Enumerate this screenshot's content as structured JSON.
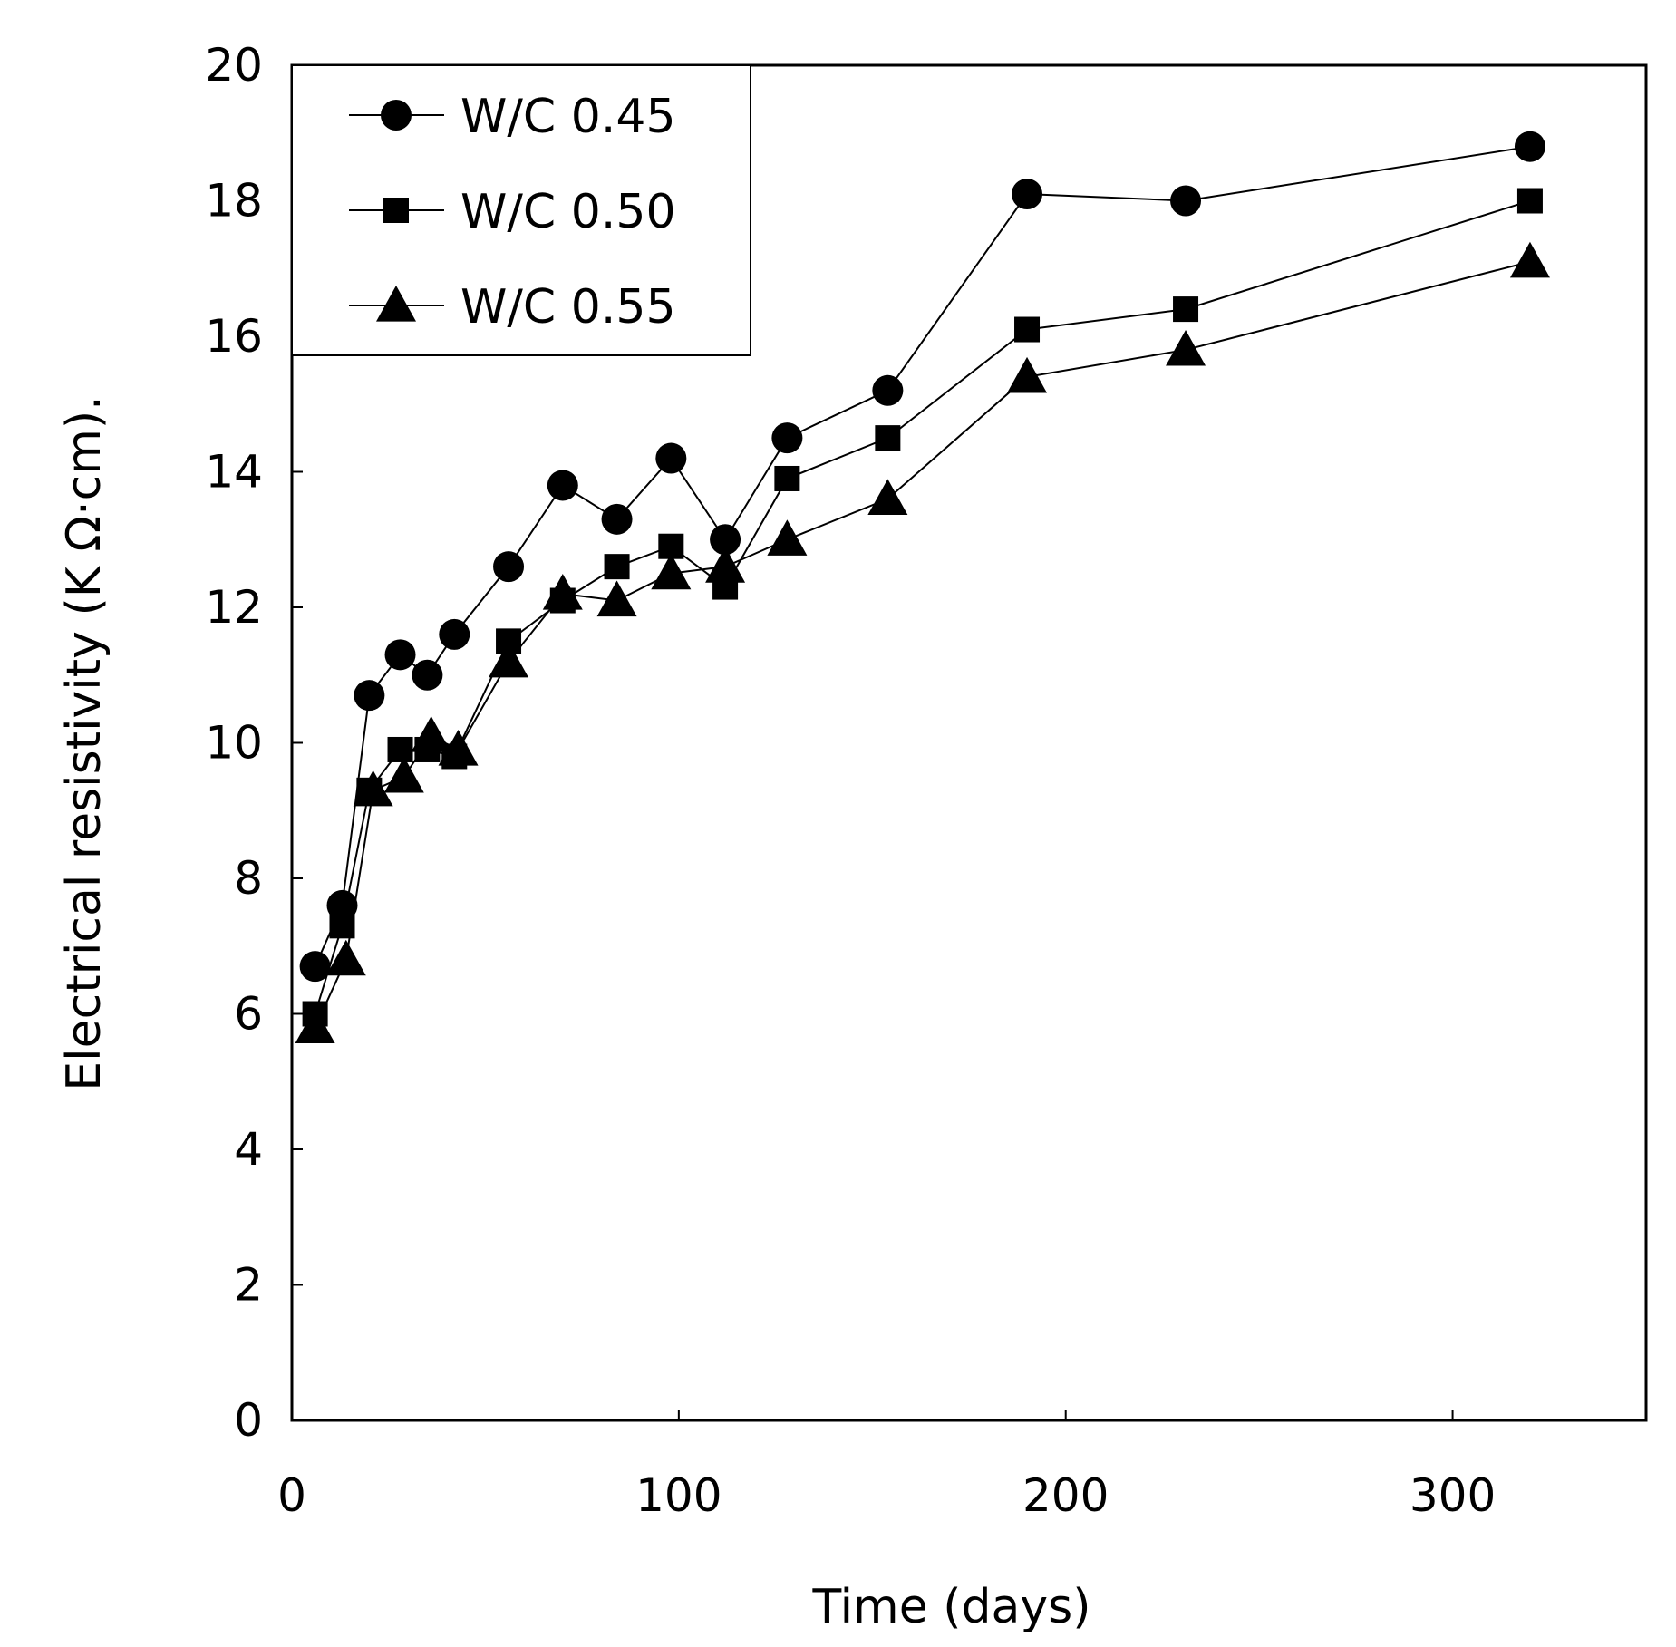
{
  "chart_data": {
    "type": "line",
    "title": "",
    "xlabel": "Time (days)",
    "ylabel": "Electrical resistivity (K Ω·cm).",
    "xlim": [
      0,
      350
    ],
    "ylim": [
      0,
      20
    ],
    "xticks": [
      0,
      100,
      200,
      300
    ],
    "xtick_labels": [
      "0",
      "100",
      "200",
      "300"
    ],
    "yticks": [
      0,
      2,
      4,
      6,
      8,
      10,
      12,
      14,
      16,
      18,
      20
    ],
    "ytick_labels": [
      "0",
      "2",
      "4",
      "6",
      "8",
      "10",
      "12",
      "14",
      "16",
      "18",
      "20"
    ],
    "grid": false,
    "legend_position": "top-left",
    "series": [
      {
        "name": "W/C 0.45",
        "marker": "circle",
        "x": [
          6,
          13,
          20,
          28,
          35,
          42,
          56,
          70,
          84,
          98,
          112,
          128,
          154,
          190,
          231,
          320
        ],
        "y": [
          6.7,
          7.6,
          10.7,
          11.3,
          11.0,
          11.6,
          12.6,
          13.8,
          13.3,
          14.2,
          13.0,
          14.5,
          15.2,
          18.1,
          18.0,
          18.8
        ]
      },
      {
        "name": "W/C 0.50",
        "marker": "square",
        "x": [
          6,
          13,
          20,
          28,
          35,
          42,
          56,
          70,
          84,
          98,
          112,
          128,
          154,
          190,
          231,
          320
        ],
        "y": [
          6.0,
          7.3,
          9.3,
          9.9,
          9.9,
          9.8,
          11.5,
          12.1,
          12.6,
          12.9,
          12.3,
          13.9,
          14.5,
          16.1,
          16.4,
          18.0
        ]
      },
      {
        "name": "W/C 0.55",
        "marker": "triangle",
        "x": [
          6,
          14,
          21,
          29,
          36,
          43,
          56,
          70,
          84,
          98,
          112,
          128,
          154,
          190,
          231,
          320
        ],
        "y": [
          5.8,
          6.8,
          9.3,
          9.5,
          10.1,
          9.9,
          11.2,
          12.2,
          12.1,
          12.5,
          12.6,
          13.0,
          13.6,
          15.4,
          15.8,
          17.1
        ]
      }
    ]
  }
}
